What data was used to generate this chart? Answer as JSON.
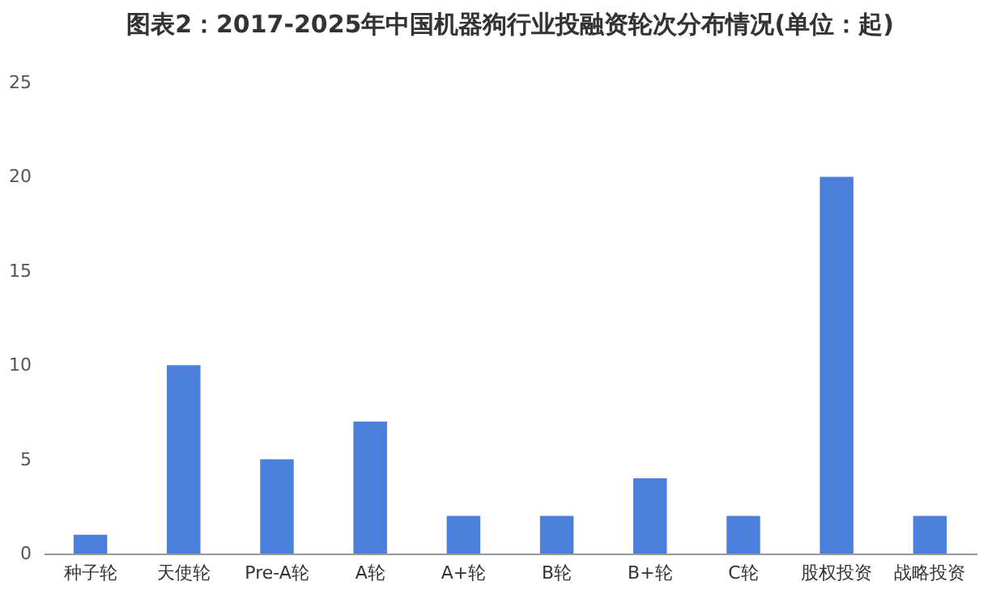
{
  "chart_data": {
    "type": "bar",
    "title": "图表2：2017-2025年中国机器狗行业投融资轮次分布情况(单位：起)",
    "categories": [
      "种子轮",
      "天使轮",
      "Pre-A轮",
      "A轮",
      "A+轮",
      "B轮",
      "B+轮",
      "C轮",
      "股权投资",
      "战略投资"
    ],
    "values": [
      1,
      10,
      5,
      7,
      2,
      2,
      4,
      2,
      20,
      2
    ],
    "color": "#4a80dc",
    "ylim": [
      0,
      25
    ],
    "yticks": [
      0,
      5,
      10,
      15,
      20,
      25
    ],
    "grid": false
  }
}
